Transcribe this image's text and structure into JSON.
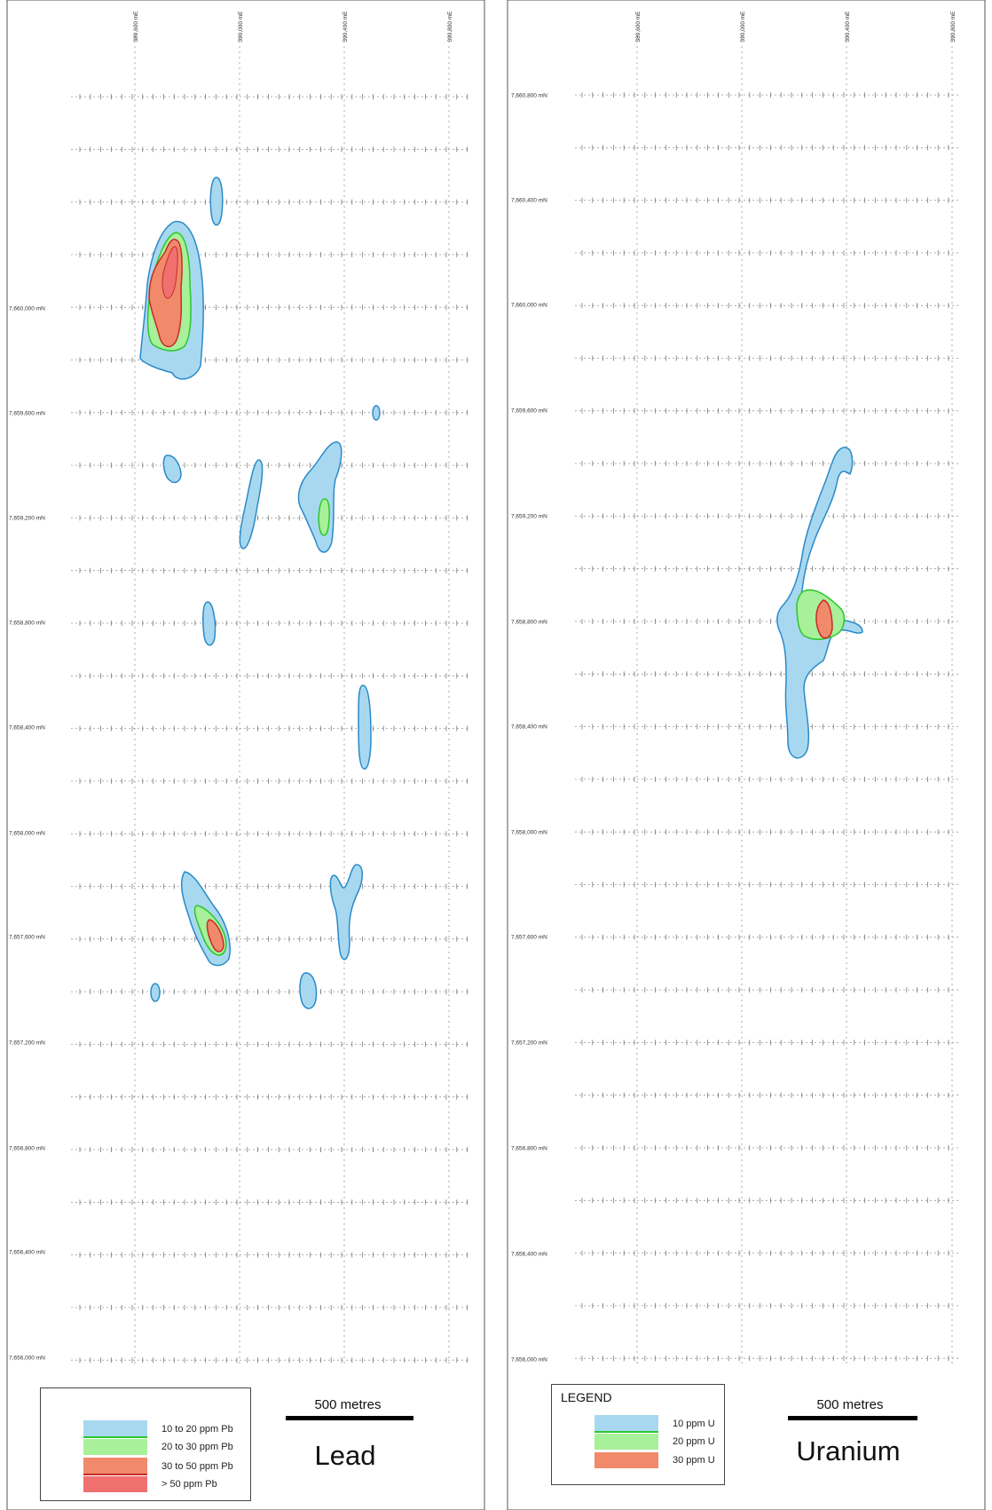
{
  "maps": [
    {
      "id": "lead",
      "title": "Lead",
      "scale_label": "500 metres",
      "easting_labels": [
        "389,600 mE",
        "390,000 mE",
        "390,400 mE",
        "390,800 mE"
      ],
      "northing_labels": [
        "7,660,000 mN",
        "7,659,600 mN",
        "7,659,200 mN",
        "7,658,800 mN",
        "7,658,400 mN",
        "7,658,000 mN",
        "7,657,600 mN",
        "7,657,200 mN",
        "7,656,800 mN",
        "7,656,400 mN",
        "7,656,000 mN"
      ],
      "legend": {
        "heading": "",
        "items": [
          {
            "label": "10 to 20 ppm Pb",
            "color": "#a8d8f0"
          },
          {
            "label": "20 to 30 ppm Pb",
            "color": "#a8f09a"
          },
          {
            "label": "30 to 50 ppm Pb",
            "color": "#f08a6a"
          },
          {
            "label": "> 50 ppm Pb",
            "color": "#f07070"
          }
        ]
      }
    },
    {
      "id": "uranium",
      "title": "Uranium",
      "scale_label": "500 metres",
      "easting_labels": [
        "389,600 mE",
        "390,000 mE",
        "390,400 mE",
        "390,800 mE"
      ],
      "northing_labels": [
        "7,660,800 mN",
        "7,660,400 mN",
        "7,660,000 mN",
        "7,659,600 mN",
        "7,659,200 mN",
        "7,658,800 mN",
        "7,658,400 mN",
        "7,658,000 mN",
        "7,657,600 mN",
        "7,657,200 mN",
        "7,656,800 mN",
        "7,656,400 mN",
        "7,656,000 mN"
      ],
      "legend": {
        "heading": "LEGEND",
        "items": [
          {
            "label": "10 ppm U",
            "color": "#a8d8f0"
          },
          {
            "label": "20 ppm U",
            "color": "#a8f09a"
          },
          {
            "label": "30 ppm U",
            "color": "#f08a6a"
          }
        ]
      }
    }
  ],
  "colors": {
    "low": "#a8d8f0",
    "low_outline": "#2a8ac8",
    "mid": "#a8f09a",
    "mid_outline": "#2ac82a",
    "high": "#f08a6a",
    "high_outline": "#c82a2a",
    "very_high": "#f07070"
  }
}
